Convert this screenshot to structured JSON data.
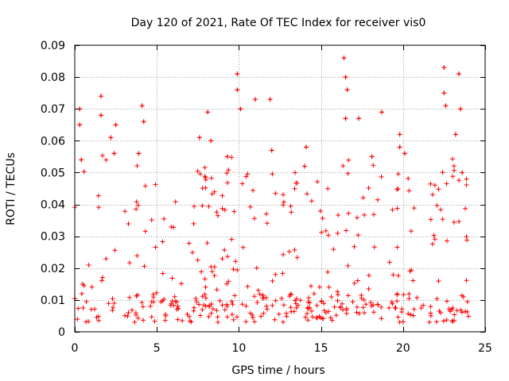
{
  "chart_data": {
    "type": "scatter",
    "title": "Day 120 of 2021, Rate Of TEC Index for receiver vis0",
    "xlabel": "GPS time / hours",
    "ylabel": "ROTI / TECUs",
    "xlim": [
      0,
      25
    ],
    "ylim": [
      0,
      0.09
    ],
    "grid": true,
    "marker": "+",
    "color": "#ff0000",
    "x_ticks": [
      0,
      5,
      10,
      15,
      20,
      25
    ],
    "y_ticks": [
      0,
      0.01,
      0.02,
      0.03,
      0.04,
      0.05,
      0.06,
      0.07,
      0.08,
      0.09
    ],
    "x_tick_labels": [
      "0",
      "5",
      "10",
      "15",
      "20",
      "25"
    ],
    "y_tick_labels": [
      "0",
      "0.01",
      "0.02",
      "0.03",
      "0.04",
      "0.05",
      "0.06",
      "0.07",
      "0.08",
      "0.09"
    ],
    "series": [
      {
        "name": "ROTI",
        "x_range": [
          0,
          24
        ],
        "envelope_hours": [
          0,
          0.5,
          1.0,
          1.7,
          2.5,
          3.3,
          4.0,
          4.7,
          5.3,
          6.0,
          6.7,
          7.3,
          8.0,
          8.7,
          9.3,
          10.0,
          10.7,
          11.3,
          12.0,
          12.7,
          13.3,
          14.0,
          14.7,
          15.3,
          16.0,
          16.5,
          17.0,
          17.7,
          18.3,
          19.0,
          19.7,
          20.3,
          21.0,
          21.7,
          22.3,
          22.7,
          23.3,
          24.0
        ],
        "envelope_typical_max": [
          0.03,
          0.035,
          0.02,
          0.042,
          0.038,
          0.02,
          0.04,
          0.03,
          0.028,
          0.022,
          0.03,
          0.034,
          0.038,
          0.026,
          0.035,
          0.04,
          0.03,
          0.036,
          0.032,
          0.028,
          0.034,
          0.036,
          0.03,
          0.026,
          0.032,
          0.04,
          0.036,
          0.03,
          0.036,
          0.028,
          0.034,
          0.04,
          0.036,
          0.03,
          0.034,
          0.04,
          0.038,
          0.03
        ],
        "baseline_min": 0.003,
        "baseline_dense_max": 0.012,
        "highlights": [
          {
            "x": 0.3,
            "y": 0.065
          },
          {
            "x": 0.3,
            "y": 0.07
          },
          {
            "x": 0.4,
            "y": 0.054
          },
          {
            "x": 1.6,
            "y": 0.074
          },
          {
            "x": 1.6,
            "y": 0.068
          },
          {
            "x": 2.2,
            "y": 0.061
          },
          {
            "x": 2.5,
            "y": 0.065
          },
          {
            "x": 2.4,
            "y": 0.056
          },
          {
            "x": 4.1,
            "y": 0.071
          },
          {
            "x": 4.2,
            "y": 0.066
          },
          {
            "x": 3.9,
            "y": 0.056
          },
          {
            "x": 7.6,
            "y": 0.061
          },
          {
            "x": 8.1,
            "y": 0.069
          },
          {
            "x": 8.3,
            "y": 0.06
          },
          {
            "x": 9.3,
            "y": 0.055
          },
          {
            "x": 9.9,
            "y": 0.081
          },
          {
            "x": 9.9,
            "y": 0.076
          },
          {
            "x": 10.1,
            "y": 0.07
          },
          {
            "x": 11.0,
            "y": 0.073
          },
          {
            "x": 11.9,
            "y": 0.073
          },
          {
            "x": 12.0,
            "y": 0.057
          },
          {
            "x": 14.1,
            "y": 0.058
          },
          {
            "x": 14.0,
            "y": 0.052
          },
          {
            "x": 16.4,
            "y": 0.086
          },
          {
            "x": 16.5,
            "y": 0.08
          },
          {
            "x": 16.6,
            "y": 0.076
          },
          {
            "x": 16.5,
            "y": 0.067
          },
          {
            "x": 17.3,
            "y": 0.067
          },
          {
            "x": 18.1,
            "y": 0.055
          },
          {
            "x": 18.7,
            "y": 0.069
          },
          {
            "x": 19.8,
            "y": 0.062
          },
          {
            "x": 19.8,
            "y": 0.058
          },
          {
            "x": 20.1,
            "y": 0.056
          },
          {
            "x": 22.5,
            "y": 0.083
          },
          {
            "x": 22.5,
            "y": 0.075
          },
          {
            "x": 22.6,
            "y": 0.071
          },
          {
            "x": 23.2,
            "y": 0.062
          },
          {
            "x": 23.4,
            "y": 0.081
          },
          {
            "x": 23.5,
            "y": 0.07
          },
          {
            "x": 23.6,
            "y": 0.05
          }
        ]
      }
    ]
  }
}
